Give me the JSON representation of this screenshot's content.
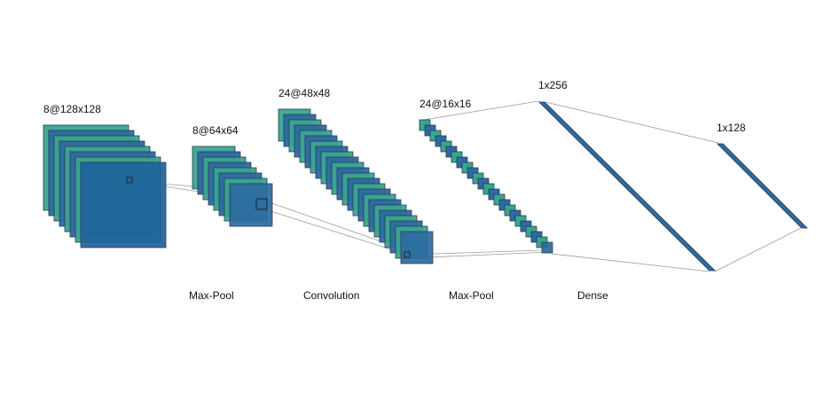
{
  "colors": {
    "teal": "#3aa58f",
    "blue": "#2d6aa0",
    "big_blue": "#1f639b",
    "edge": "#2b3a55",
    "connector": "#9a9a9a",
    "background": "#ffffff"
  },
  "layers": [
    {
      "label": "8@128x128",
      "maps": 8
    },
    {
      "label": "8@64x64",
      "maps": 8
    },
    {
      "label": "24@48x48",
      "maps": 24
    },
    {
      "label": "24@16x16",
      "maps": 24
    },
    {
      "label": "1x256"
    },
    {
      "label": "1x128"
    }
  ],
  "operations": [
    "Max-Pool",
    "Convolution",
    "Max-Pool",
    "Dense"
  ]
}
